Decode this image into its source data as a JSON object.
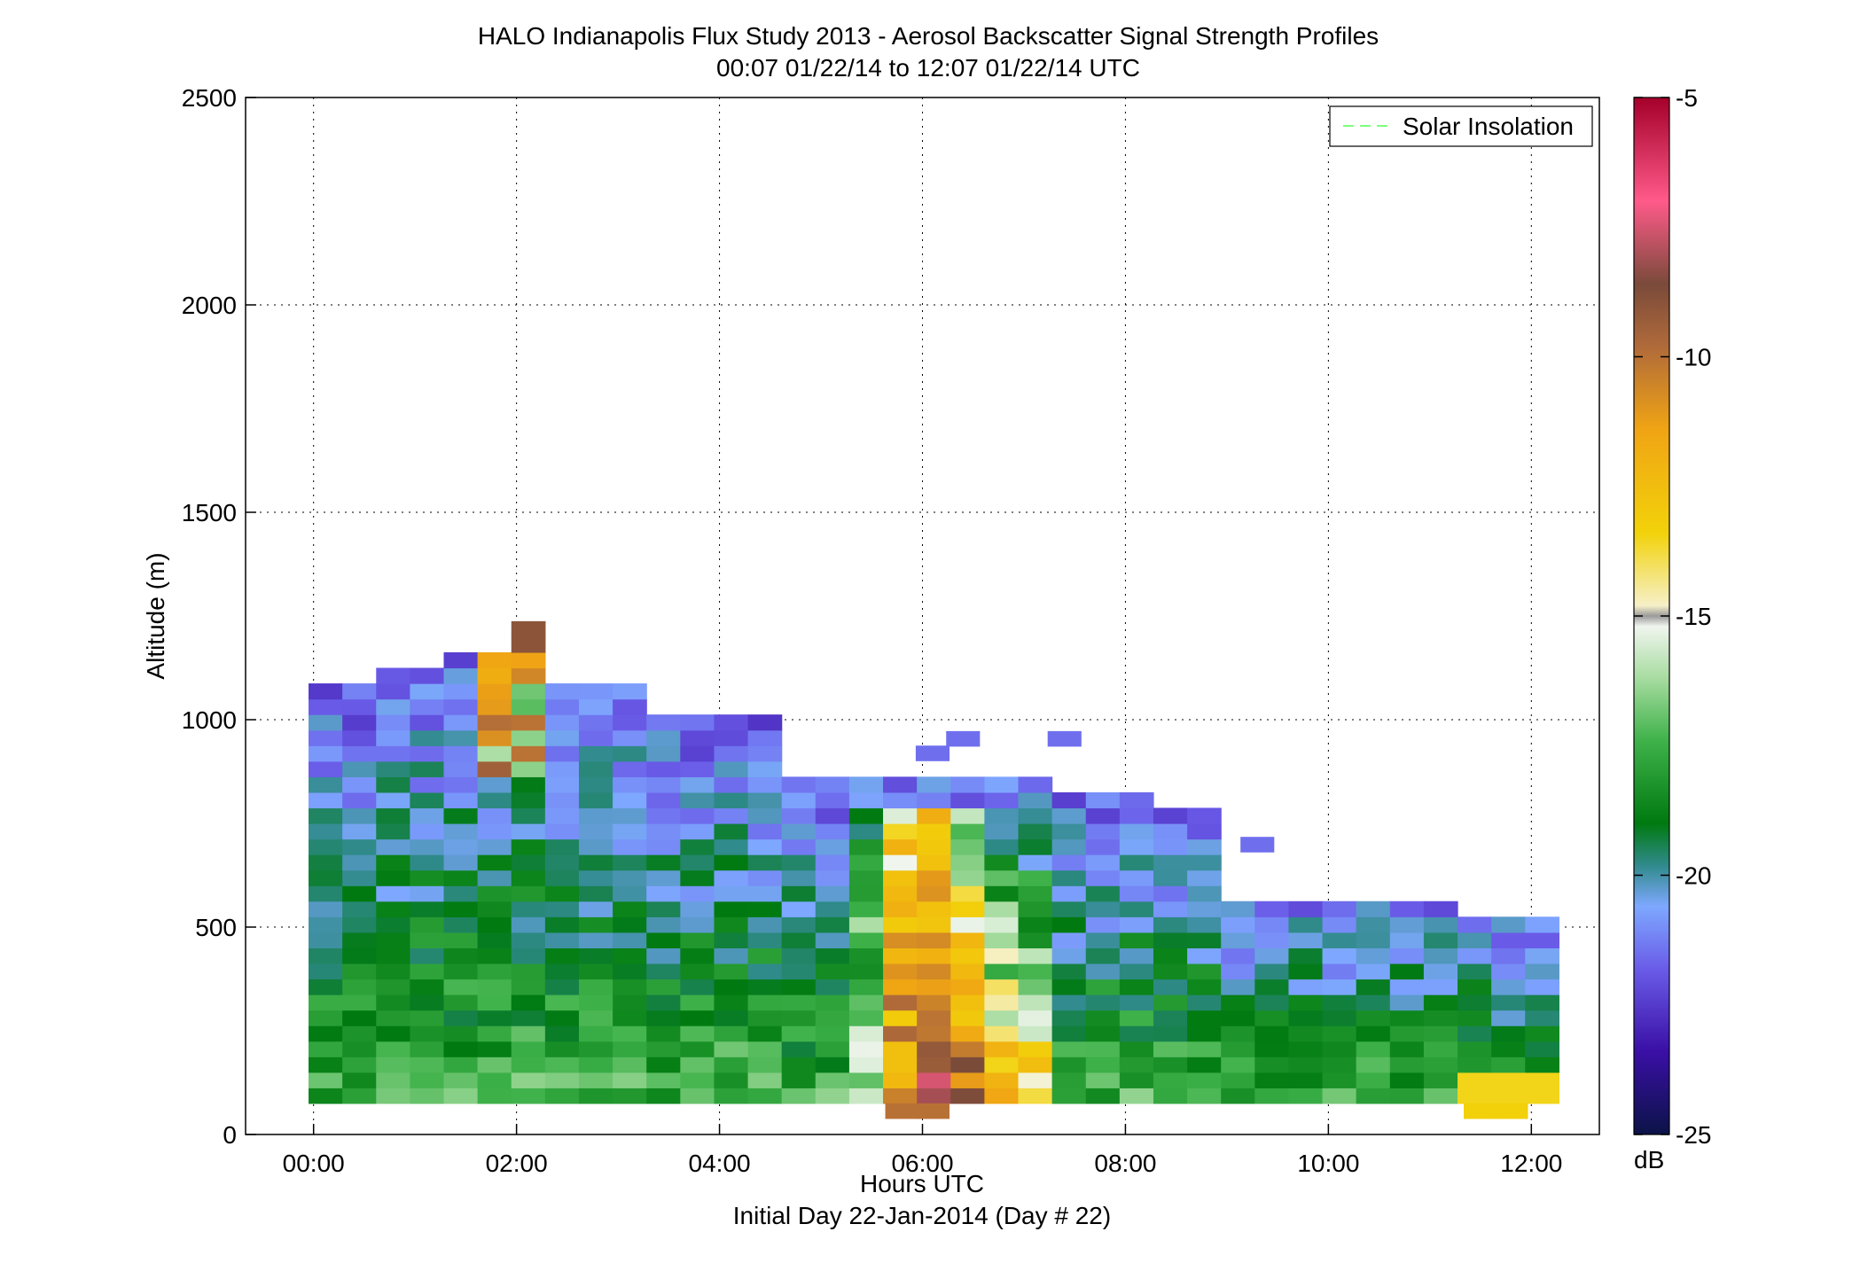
{
  "chart_data": {
    "type": "heatmap",
    "title": "HALO Indianapolis Flux Study 2013 - Aerosol Backscatter Signal Strength Profiles",
    "subtitle": "00:07 01/22/14 to 12:07 01/22/14  UTC",
    "xlabel": "Hours UTC",
    "xlabel2": "Initial Day 22-Jan-2014 (Day # 22)",
    "ylabel": "Altitude (m)",
    "xlim_hours": [
      -0.67,
      12.67
    ],
    "ylim": [
      0,
      2500
    ],
    "xticks": [
      "00:00",
      "02:00",
      "04:00",
      "06:00",
      "08:00",
      "10:00",
      "12:00"
    ],
    "yticks": [
      "0",
      "500",
      "1000",
      "1500",
      "2000",
      "2500"
    ],
    "grid": true,
    "legend": {
      "entries": [
        "Solar Insolation"
      ],
      "placement": "top-right",
      "color": "#7dff7d"
    },
    "colorbar": {
      "label": "dB",
      "range": [
        -25,
        -5
      ],
      "ticks": [
        "-5",
        "-10",
        "-15",
        "-20",
        "-25"
      ]
    },
    "time_start_hours": 0.117,
    "time_step_hours": 0.333,
    "altitude_start_m": 75,
    "altitude_step_m": 37.5,
    "columns": [
      {
        "time": "00:07",
        "profile_top_m": 1080,
        "note": "bins from surface up"
      },
      {
        "time": "01:47",
        "profile_top_m": 1230
      },
      {
        "time": "02:27",
        "profile_top_m": 1100
      },
      {
        "time": "04:07",
        "profile_top_m": 1000
      },
      {
        "time": "05:27",
        "profile_top_m": 880
      },
      {
        "time": "06:07",
        "profile_top_m": 880
      },
      {
        "time": "07:07",
        "profile_top_m": 880
      },
      {
        "time": "08:47",
        "profile_top_m": 790
      },
      {
        "time": "10:47",
        "profile_top_m": 560
      },
      {
        "time": "12:07",
        "profile_top_m": 540
      }
    ]
  }
}
